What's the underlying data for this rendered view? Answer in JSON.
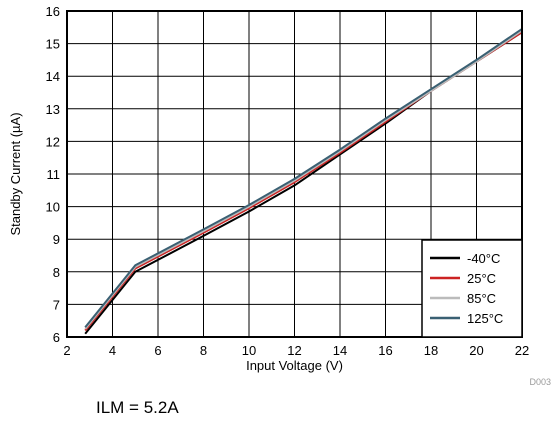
{
  "chart_data": {
    "type": "line",
    "title": "",
    "xlabel": "Input Voltage (V)",
    "ylabel": "Standby Current (µA)",
    "xlim": [
      2,
      22
    ],
    "ylim": [
      6,
      16
    ],
    "xticks": [
      2,
      4,
      6,
      8,
      10,
      12,
      14,
      16,
      18,
      20,
      22
    ],
    "yticks": [
      6,
      7,
      8,
      9,
      10,
      11,
      12,
      13,
      14,
      15,
      16
    ],
    "grid": true,
    "legend_position": "bottom-right",
    "series": [
      {
        "name": "-40°C",
        "color": "#000000",
        "x": [
          2.8,
          5,
          8,
          10,
          12,
          14,
          16,
          18,
          20,
          22
        ],
        "y": [
          6.1,
          8.0,
          9.1,
          9.85,
          10.65,
          11.6,
          12.55,
          13.55,
          14.45,
          15.35
        ]
      },
      {
        "name": "25°C",
        "color": "#cc2222",
        "x": [
          2.8,
          5,
          8,
          10,
          12,
          14,
          16,
          18,
          20,
          22
        ],
        "y": [
          6.2,
          8.1,
          9.2,
          9.95,
          10.75,
          11.65,
          12.6,
          13.55,
          14.45,
          15.35
        ]
      },
      {
        "name": "85°C",
        "color": "#bbbbbb",
        "x": [
          2.8,
          5,
          8,
          10,
          12,
          14,
          16,
          18,
          20,
          22
        ],
        "y": [
          6.25,
          8.15,
          9.25,
          10.0,
          10.8,
          11.7,
          12.65,
          13.55,
          14.45,
          15.4
        ]
      },
      {
        "name": "125°C",
        "color": "#3a6073",
        "x": [
          2.8,
          5,
          8,
          10,
          12,
          14,
          16,
          18,
          20,
          22
        ],
        "y": [
          6.3,
          8.2,
          9.3,
          10.05,
          10.85,
          11.75,
          12.7,
          13.6,
          14.5,
          15.45
        ]
      }
    ],
    "watermark": "D003"
  },
  "caption": "ILM = 5.2A"
}
